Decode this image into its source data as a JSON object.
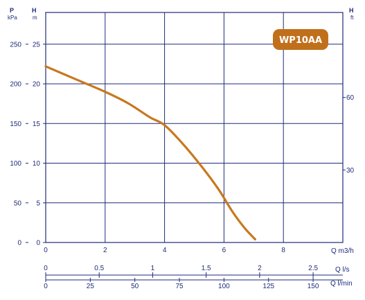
{
  "badge": "WP10AA",
  "axes": {
    "left_pressure": {
      "symbol": "P",
      "unit": "kPa",
      "ticks": [
        "0",
        "50",
        "100",
        "150",
        "200",
        "250"
      ],
      "values": [
        0,
        50,
        100,
        150,
        200,
        250
      ]
    },
    "left_head": {
      "symbol": "H",
      "unit": "m",
      "ticks": [
        "0",
        "5",
        "10",
        "15",
        "20",
        "25"
      ],
      "values": [
        0,
        5,
        10,
        15,
        20,
        25
      ]
    },
    "right_head": {
      "symbol": "H",
      "unit": "ft",
      "ticks": [
        "30",
        "60"
      ],
      "values": [
        30,
        60
      ]
    },
    "flow_m3h": {
      "label": "Q m3/h",
      "ticks": [
        "0",
        "2",
        "4",
        "6",
        "8"
      ],
      "values": [
        0,
        2,
        4,
        6,
        8
      ]
    },
    "flow_ls": {
      "label": "Q l/s",
      "ticks": [
        "0",
        "0.5",
        "1",
        "1.5",
        "2",
        "2.5"
      ],
      "values": [
        0,
        0.5,
        1,
        1.5,
        2,
        2.5
      ]
    },
    "flow_lmin": {
      "label": "Q l/min",
      "ticks": [
        "0",
        "25",
        "50",
        "75",
        "100",
        "125",
        "150"
      ],
      "values": [
        0,
        25,
        50,
        75,
        100,
        125,
        150
      ]
    }
  },
  "colors": {
    "grid": "#1e2a78",
    "curve": "#c8781e",
    "badge": "#c0701b",
    "text": "#1e2a78"
  },
  "chart_data": {
    "type": "line",
    "title": "WP10AA",
    "xlabel": "Q m3/h",
    "ylabel": "H m",
    "xlim": [
      0,
      10
    ],
    "ylim": [
      0,
      29
    ],
    "grid": true,
    "series": [
      {
        "name": "WP10AA",
        "x": [
          0,
          1,
          2,
          2.8,
          3.5,
          4,
          4.6,
          5.2,
          5.8,
          6.3,
          6.7,
          7.05
        ],
        "y": [
          22.2,
          20.6,
          19.0,
          17.5,
          15.8,
          14.8,
          12.5,
          9.8,
          6.8,
          3.8,
          1.8,
          0.4
        ]
      }
    ]
  }
}
